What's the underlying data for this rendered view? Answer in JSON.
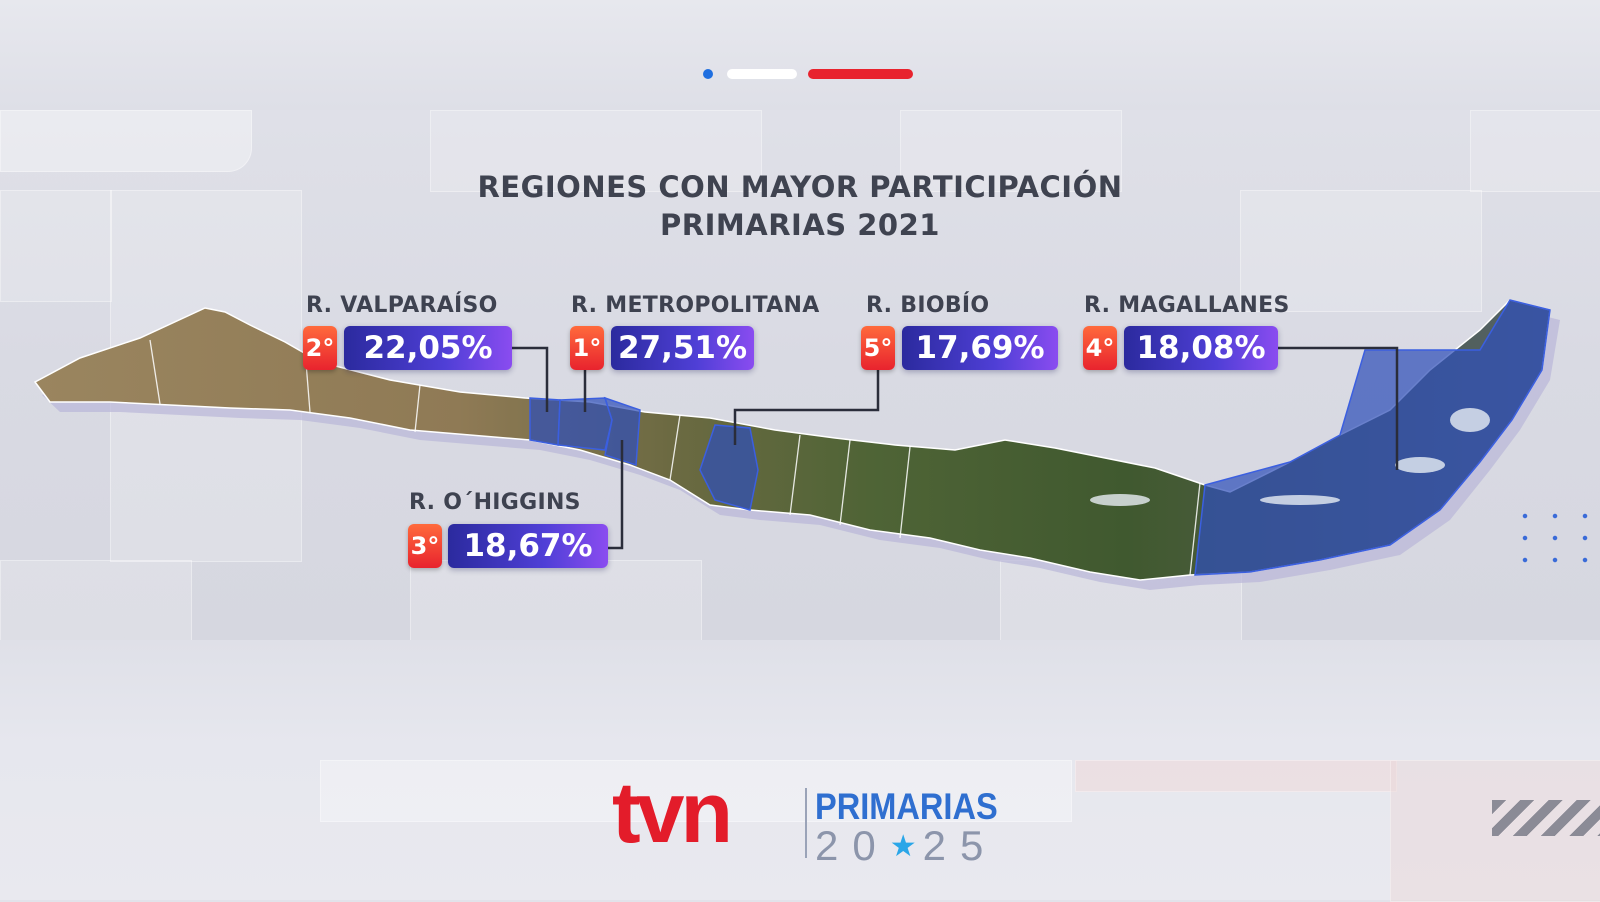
{
  "title": {
    "line1": "REGIONES CON MAYOR PARTICIPACIÓN",
    "line2": "PRIMARIAS 2021"
  },
  "regions": [
    {
      "name": "R. VALPARAÍSO",
      "rank": "2°",
      "participation": "22,05%"
    },
    {
      "name": "R. METROPOLITANA",
      "rank": "1°",
      "participation": "27,51%"
    },
    {
      "name": "R. BIOBÍO",
      "rank": "5°",
      "participation": "17,69%"
    },
    {
      "name": "R. MAGALLANES",
      "rank": "4°",
      "participation": "18,08%"
    },
    {
      "name": "R. O´HIGGINS",
      "rank": "3°",
      "participation": "18,67%"
    }
  ],
  "branding": {
    "channel": "tvn",
    "event": "PRIMARIAS",
    "year_left": "20",
    "year_right": "25"
  },
  "colors": {
    "flag_blue": "#1f6fe0",
    "flag_white": "#ffffff",
    "flag_red": "#e8232e",
    "rank_badge": "#e8232e",
    "percent_badge": "#4a3fd2",
    "highlight_region": "#2f4fb8",
    "tvn_red": "#e31c2a",
    "primarias_blue": "#2f6fd0"
  },
  "icons": {
    "star": "star-icon"
  }
}
